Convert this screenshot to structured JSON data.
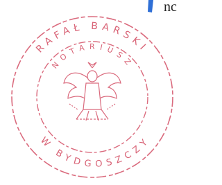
{
  "stamp": {
    "outer_text": "RAFAŁ BARSKI",
    "inner_text": "NOTARIUSZ",
    "bottom_text": "W BYDGOSZCZY"
  },
  "page_fragment": "nc"
}
